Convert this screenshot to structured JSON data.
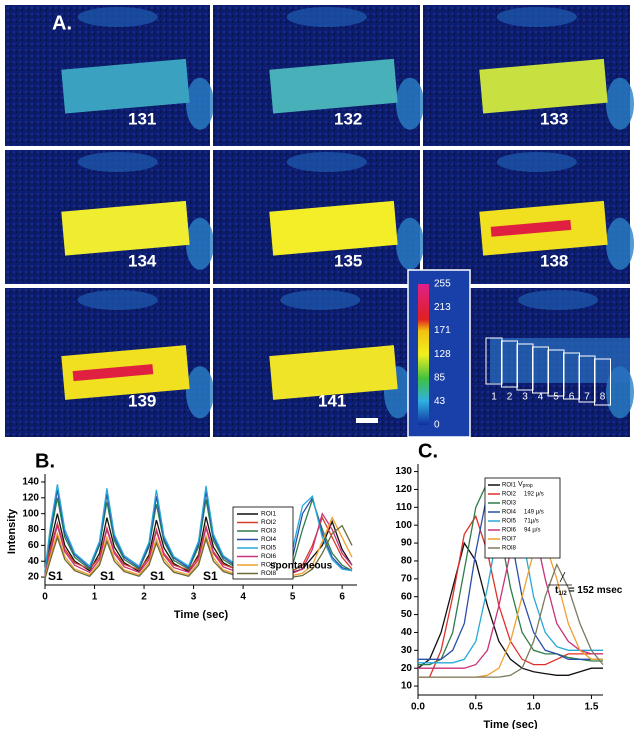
{
  "panel_a": {
    "label": "A.",
    "frames": [
      "131",
      "132",
      "133",
      "134",
      "135",
      "138",
      "139",
      "141"
    ],
    "colorbar_ticks": [
      255,
      213,
      171,
      128,
      85,
      43,
      0
    ],
    "roi_labels": [
      "1",
      "2",
      "3",
      "4",
      "5",
      "6",
      "7",
      "8"
    ]
  },
  "chart_data": [
    {
      "type": "line",
      "title": "B.",
      "xlabel": "Time (sec)",
      "ylabel": "Intensity",
      "x": [
        0,
        0.1,
        0.25,
        0.4,
        0.6,
        0.9,
        1.1,
        1.25,
        1.4,
        1.6,
        1.9,
        2.1,
        2.25,
        2.4,
        2.6,
        2.9,
        3.1,
        3.25,
        3.4,
        3.6,
        3.9,
        4.3,
        4.7,
        5.0,
        5.2,
        5.4,
        5.6,
        5.8,
        6.0,
        6.2
      ],
      "xlim": [
        0,
        6.3
      ],
      "xticks": [
        0,
        1,
        2,
        3,
        4,
        5,
        6
      ],
      "ylim": [
        10,
        145
      ],
      "yticks": [
        20,
        40,
        60,
        80,
        100,
        120,
        140
      ],
      "annotations": [
        "S1",
        "S1",
        "S1",
        "S1",
        "spontaneous"
      ],
      "series": [
        {
          "name": "ROI1",
          "color": "#111111",
          "values": [
            22,
            60,
            100,
            60,
            40,
            28,
            50,
            95,
            58,
            38,
            27,
            48,
            92,
            57,
            37,
            27,
            48,
            96,
            58,
            38,
            28,
            25,
            24,
            26,
            30,
            45,
            60,
            90,
            55,
            35
          ]
        },
        {
          "name": "ROI2",
          "color": "#d2402a",
          "values": [
            25,
            55,
            88,
            55,
            38,
            30,
            45,
            82,
            52,
            36,
            29,
            45,
            80,
            50,
            35,
            29,
            45,
            84,
            52,
            36,
            29,
            27,
            26,
            28,
            35,
            60,
            95,
            70,
            45,
            30
          ]
        },
        {
          "name": "ROI3",
          "color": "#2e7d4a",
          "values": [
            24,
            70,
            120,
            70,
            45,
            30,
            60,
            115,
            66,
            42,
            30,
            58,
            112,
            65,
            41,
            30,
            58,
            118,
            66,
            42,
            30,
            28,
            27,
            35,
            80,
            118,
            80,
            50,
            35,
            28
          ]
        },
        {
          "name": "ROI4",
          "color": "#2b4fa8",
          "values": [
            26,
            75,
            130,
            75,
            48,
            32,
            62,
            125,
            70,
            45,
            32,
            60,
            122,
            68,
            44,
            32,
            62,
            128,
            70,
            45,
            32,
            30,
            29,
            45,
            100,
            120,
            75,
            45,
            32,
            28
          ]
        },
        {
          "name": "ROI5",
          "color": "#27a9d8",
          "values": [
            28,
            80,
            137,
            80,
            50,
            34,
            65,
            132,
            74,
            47,
            34,
            64,
            130,
            72,
            46,
            34,
            65,
            135,
            74,
            47,
            34,
            32,
            31,
            55,
            110,
            122,
            70,
            42,
            30,
            28
          ]
        },
        {
          "name": "ROI6",
          "color": "#c8327a",
          "values": [
            22,
            50,
            85,
            52,
            35,
            26,
            42,
            80,
            50,
            33,
            26,
            42,
            78,
            48,
            32,
            26,
            42,
            82,
            50,
            33,
            26,
            24,
            23,
            25,
            30,
            55,
            100,
            80,
            50,
            35
          ]
        },
        {
          "name": "ROI7",
          "color": "#f0a030",
          "values": [
            20,
            45,
            75,
            46,
            30,
            23,
            38,
            70,
            44,
            29,
            23,
            38,
            68,
            43,
            28,
            23,
            38,
            72,
            44,
            29,
            23,
            22,
            21,
            22,
            25,
            35,
            65,
            95,
            70,
            45
          ]
        },
        {
          "name": "ROI8",
          "color": "#6b6b3a",
          "values": [
            18,
            40,
            70,
            42,
            28,
            21,
            35,
            65,
            40,
            27,
            21,
            35,
            63,
            39,
            26,
            21,
            35,
            68,
            40,
            27,
            21,
            20,
            19,
            20,
            22,
            30,
            50,
            75,
            85,
            60
          ]
        }
      ]
    },
    {
      "type": "line",
      "title": "C.",
      "xlabel": "Time (sec)",
      "x": [
        0,
        0.1,
        0.2,
        0.3,
        0.4,
        0.5,
        0.6,
        0.7,
        0.8,
        0.9,
        1.0,
        1.1,
        1.2,
        1.3,
        1.4,
        1.5,
        1.6
      ],
      "xlim": [
        0,
        1.6
      ],
      "xticks": [
        {
          "value": 0,
          "label": "0.0"
        },
        0.5,
        {
          "value": 1,
          "label": "1.0"
        },
        1.5
      ],
      "ylim": [
        5,
        132
      ],
      "yticks": [
        10,
        20,
        30,
        40,
        50,
        60,
        70,
        80,
        90,
        100,
        110,
        120,
        130
      ],
      "legend_title": "V",
      "legend_title_sub": "prop",
      "annotation": "t",
      "annotation_sub": "1/2",
      "annotation_rest": "= 152 msec",
      "series": [
        {
          "name": "ROI1",
          "color": "#111111",
          "values": [
            20,
            25,
            40,
            65,
            90,
            80,
            55,
            35,
            25,
            20,
            18,
            17,
            16,
            16,
            18,
            20,
            20
          ]
        },
        {
          "name": "ROI2",
          "color": "#e0302a",
          "note": "192 µ/s",
          "values": [
            15,
            15,
            30,
            60,
            95,
            105,
            85,
            55,
            35,
            25,
            22,
            22,
            25,
            28,
            28,
            28,
            28
          ]
        },
        {
          "name": "ROI3",
          "color": "#2e7d4a",
          "values": [
            22,
            22,
            25,
            40,
            75,
            110,
            124,
            100,
            65,
            40,
            30,
            28,
            28,
            26,
            25,
            24,
            24
          ]
        },
        {
          "name": "ROI4",
          "color": "#2b4fa8",
          "note": "149 µ/s",
          "values": [
            25,
            25,
            25,
            30,
            45,
            85,
            118,
            122,
            95,
            60,
            40,
            30,
            28,
            25,
            25,
            25,
            25
          ]
        },
        {
          "name": "ROI5",
          "color": "#27a9d8",
          "note": "71µ/s",
          "values": [
            23,
            23,
            23,
            23,
            25,
            35,
            65,
            100,
            120,
            95,
            60,
            40,
            32,
            30,
            30,
            30,
            30
          ]
        },
        {
          "name": "ROI6",
          "color": "#c8327a",
          "note": "94 µ/s",
          "values": [
            20,
            20,
            20,
            20,
            20,
            22,
            30,
            55,
            85,
            108,
            100,
            70,
            45,
            35,
            30,
            28,
            28
          ]
        },
        {
          "name": "ROI7",
          "color": "#f0a030",
          "values": [
            15,
            15,
            15,
            15,
            15,
            15,
            16,
            20,
            35,
            60,
            85,
            90,
            70,
            45,
            30,
            25,
            25
          ]
        },
        {
          "name": "ROI8",
          "color": "#7a7a60",
          "values": [
            15,
            15,
            15,
            15,
            15,
            15,
            15,
            15,
            16,
            20,
            35,
            60,
            78,
            65,
            45,
            30,
            22
          ]
        }
      ]
    }
  ]
}
